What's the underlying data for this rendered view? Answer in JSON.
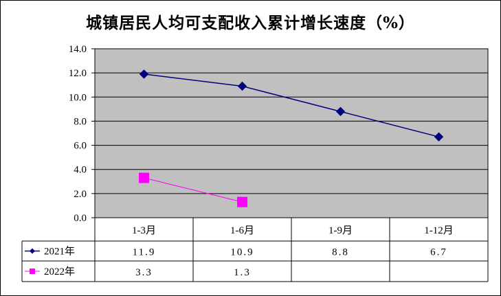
{
  "chart_data": {
    "type": "line",
    "title": "城镇居民人均可支配收入累计增长速度（%）",
    "categories": [
      "1-3月",
      "1-6月",
      "1-9月",
      "1-12月"
    ],
    "y_ticks": [
      "0.0",
      "2.0",
      "4.0",
      "6.0",
      "8.0",
      "10.0",
      "12.0",
      "14.0"
    ],
    "ylim": [
      0,
      14
    ],
    "grid": true,
    "legend": "data-table-left",
    "series": [
      {
        "name": "2021年",
        "values": [
          11.9,
          10.9,
          8.8,
          6.7
        ],
        "labels": [
          "11.9",
          "10.9",
          "8.8",
          "6.7"
        ],
        "color": "#000080",
        "marker": "diamond"
      },
      {
        "name": "2022年",
        "values": [
          3.3,
          1.3,
          null,
          null
        ],
        "labels": [
          "3.3",
          "1.3",
          "",
          ""
        ],
        "color": "#FF00FF",
        "marker": "square"
      }
    ],
    "plot_background": "#C0C0C0"
  }
}
